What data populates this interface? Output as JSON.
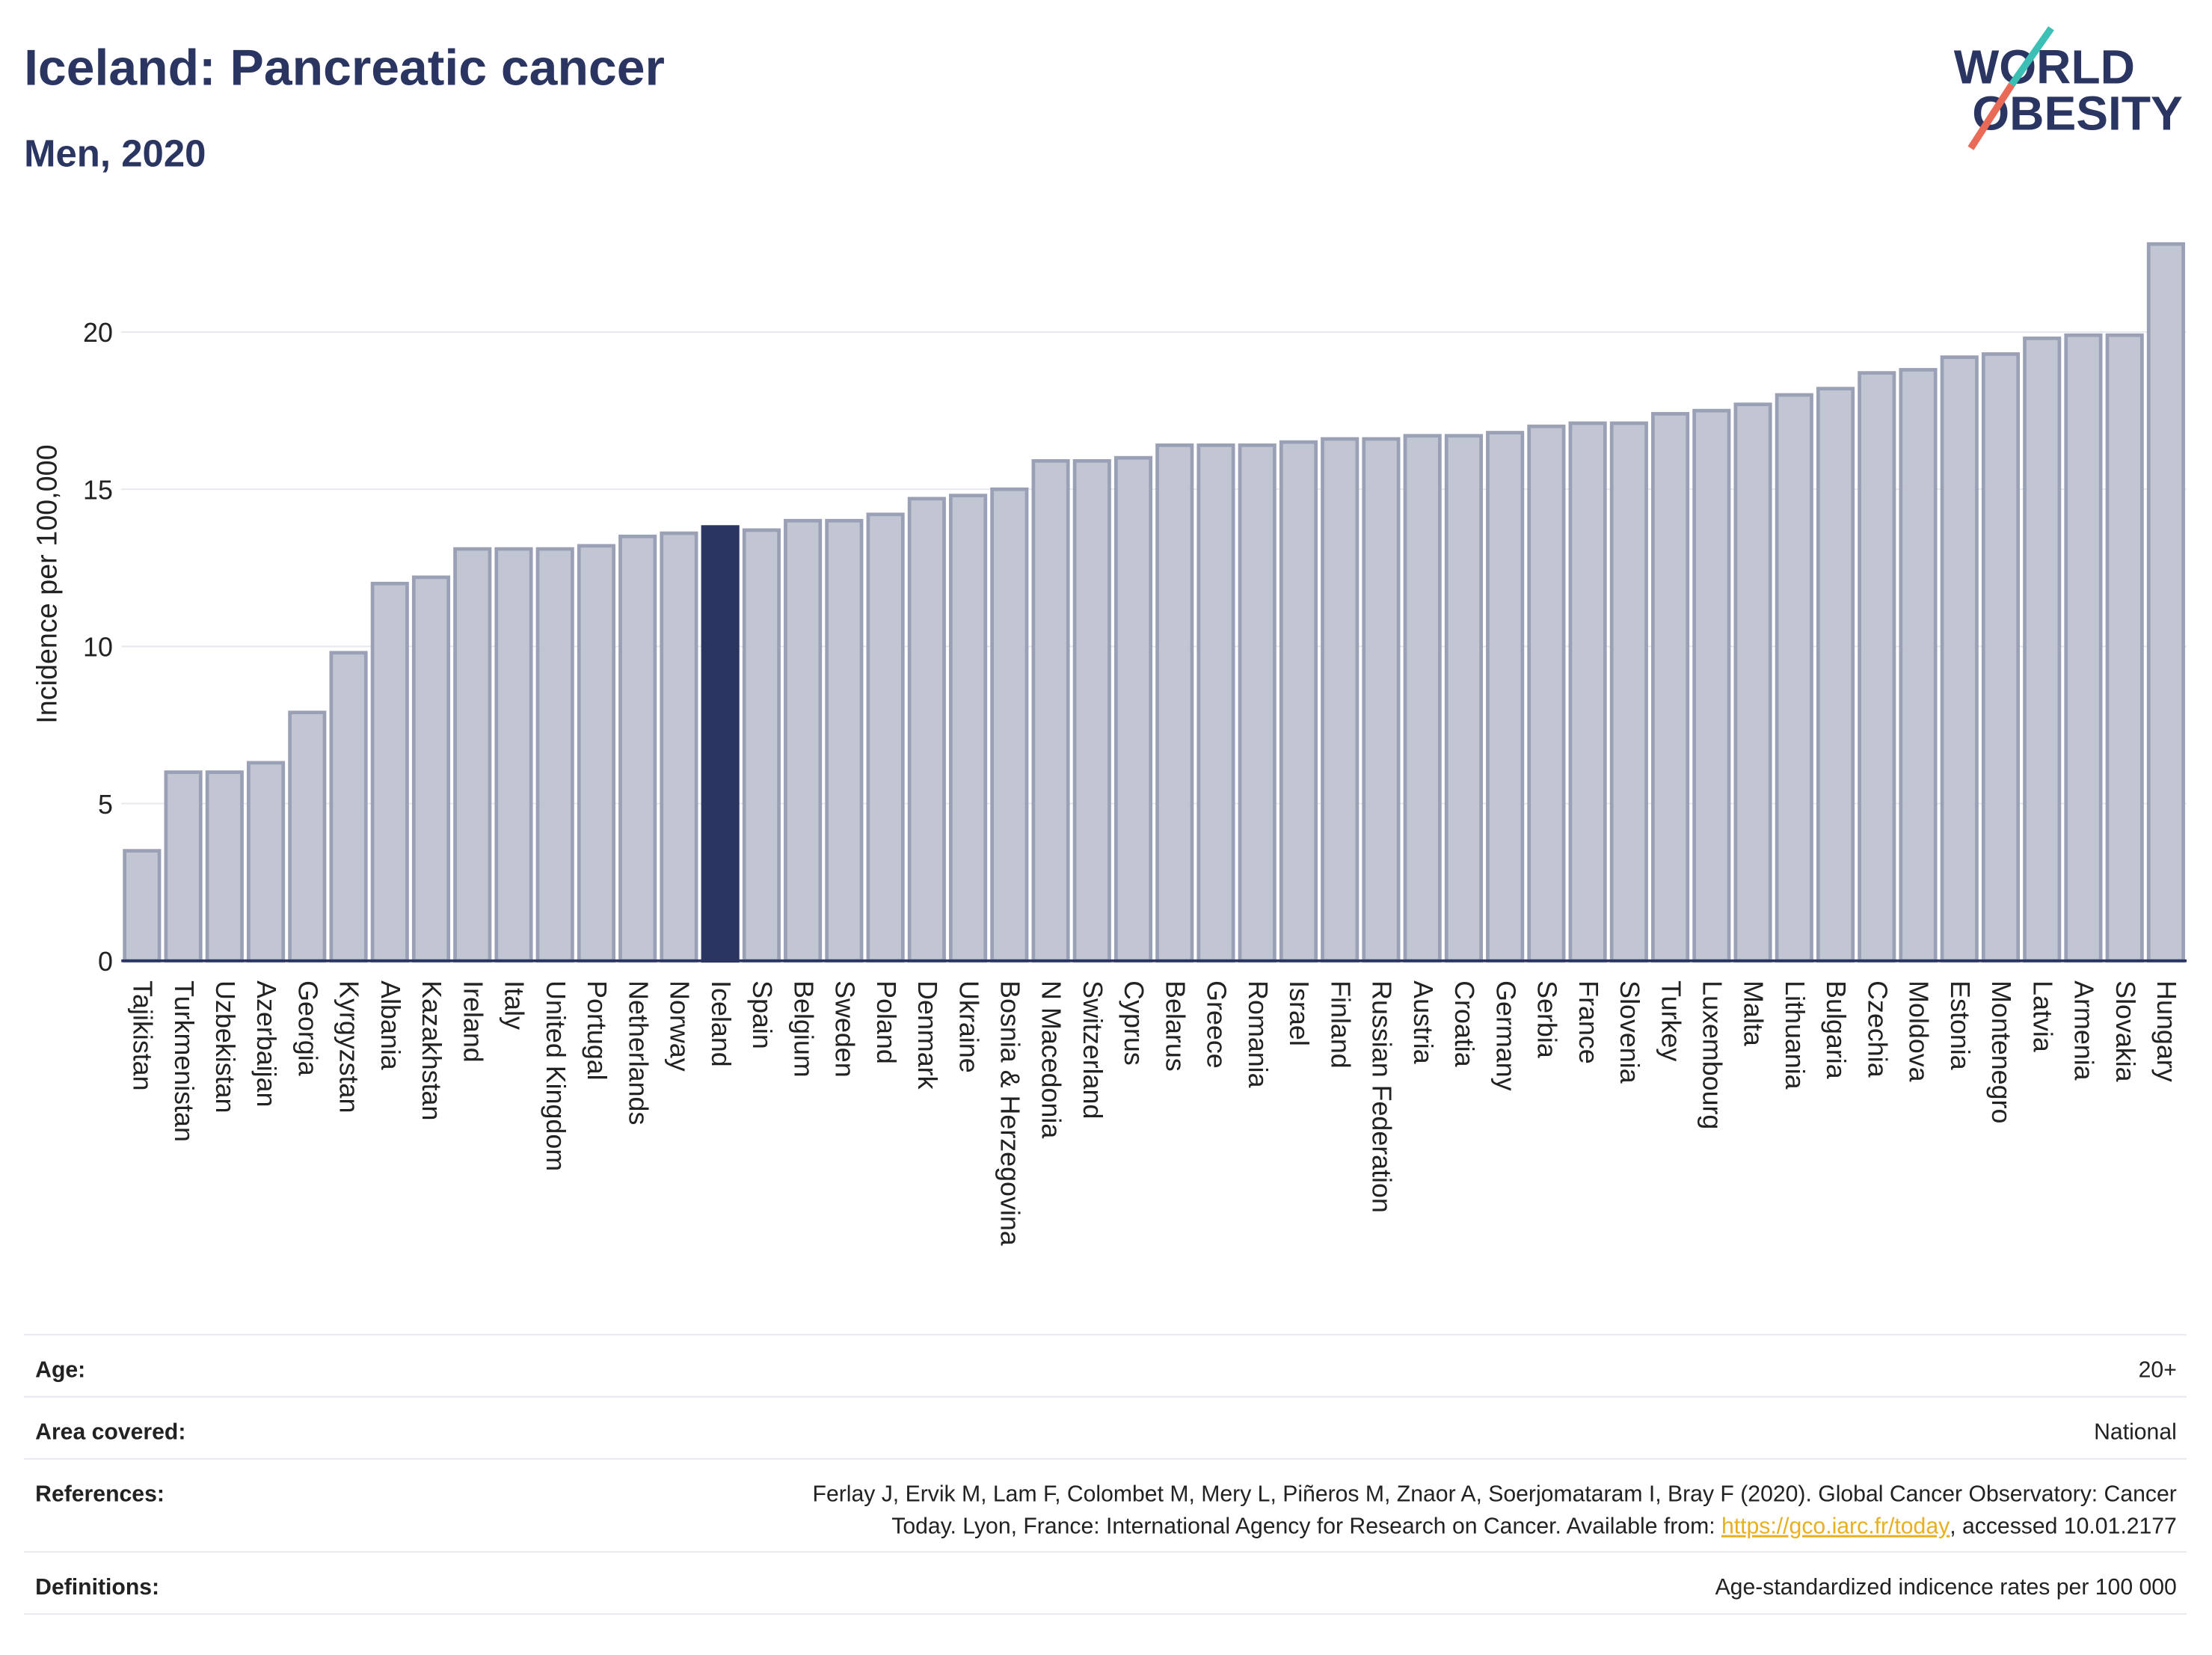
{
  "title": "Iceland: Pancreatic cancer",
  "subtitle": "Men, 2020",
  "logo": {
    "line1": "WORLD",
    "line2": "OBESITY"
  },
  "chart_data": {
    "type": "bar",
    "y_label": "Incidence per 100,000",
    "categories": [
      "Tajikistan",
      "Turkmenistan",
      "Uzbekistan",
      "Azerbaijan",
      "Georgia",
      "Kyrgyzstan",
      "Albania",
      "Kazakhstan",
      "Ireland",
      "Italy",
      "United Kingdom",
      "Portugal",
      "Netherlands",
      "Norway",
      "Iceland",
      "Spain",
      "Belgium",
      "Sweden",
      "Poland",
      "Denmark",
      "Ukraine",
      "Bosnia & Herzegovina",
      "N Macedonia",
      "Switzerland",
      "Cyprus",
      "Belarus",
      "Greece",
      "Romania",
      "Israel",
      "Finland",
      "Russian Federation",
      "Austria",
      "Croatia",
      "Germany",
      "Serbia",
      "France",
      "Slovenia",
      "Turkey",
      "Luxembourg",
      "Malta",
      "Lithuania",
      "Bulgaria",
      "Czechia",
      "Moldova",
      "Estonia",
      "Montenegro",
      "Latvia",
      "Armenia",
      "Slovakia",
      "Hungary"
    ],
    "values": [
      3.5,
      6.0,
      6.0,
      6.3,
      7.9,
      9.8,
      12.0,
      12.2,
      13.1,
      13.1,
      13.1,
      13.2,
      13.5,
      13.6,
      13.8,
      13.7,
      14.0,
      14.0,
      14.2,
      14.7,
      14.8,
      15.0,
      15.9,
      15.9,
      16.0,
      16.4,
      16.4,
      16.4,
      16.5,
      16.6,
      16.6,
      16.7,
      16.7,
      16.8,
      17.0,
      17.1,
      17.1,
      17.4,
      17.5,
      17.7,
      18.0,
      18.2,
      18.7,
      18.8,
      19.2,
      19.3,
      19.8,
      19.9,
      19.9,
      22.8
    ],
    "color": "#bfc3d0",
    "highlight": "Iceland",
    "highlight_color": "#2b3561",
    "ylim": [
      0,
      23.2
    ],
    "yticks": [
      0,
      5,
      10,
      15,
      20
    ],
    "grid": true
  },
  "table": {
    "rows": [
      [
        "Age:",
        "20+"
      ],
      [
        "Area covered:",
        "National"
      ],
      [
        "References:",
        {
          "line1": "Ferlay J, Ervik M, Lam F, Colombet M, Mery L, Piñeros M, Znaor A, Soerjomataram I, Bray F (2020). Global Cancer Observatory: Cancer",
          "before": "Today. Lyon, France: International Agency for Research on Cancer. Available from: ",
          "link": "https://gco.iarc.fr/today",
          "after": ", accessed 10.01.2177"
        }
      ],
      [
        "Definitions:",
        "Age-standardized indicence rates per 100 000"
      ]
    ]
  }
}
